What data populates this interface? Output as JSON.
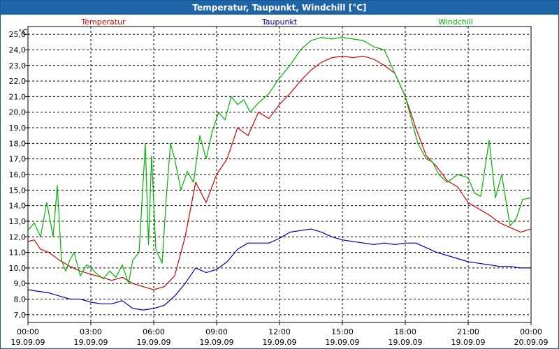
{
  "window": {
    "title": "Temperatur, Taupunkt, Windchill [°C]"
  },
  "chart_data": {
    "type": "line",
    "title": "Temperatur, Taupunkt, Windchill [°C]",
    "ylabel": "°C",
    "ylim": [
      6.5,
      25.5
    ],
    "xlim": [
      0,
      24
    ],
    "grid": true,
    "y_ticks": [
      "7,0",
      "8,0",
      "9,0",
      "10,0",
      "11,0",
      "12,0",
      "13,0",
      "14,0",
      "15,0",
      "16,0",
      "17,0",
      "18,0",
      "19,0",
      "20,0",
      "21,0",
      "22,0",
      "23,0",
      "24,0",
      "25,0"
    ],
    "x_ticks": [
      {
        "time": "00:00",
        "date": "19.09.09"
      },
      {
        "time": "03:00",
        "date": "19.09.09"
      },
      {
        "time": "06:00",
        "date": "19.09.09"
      },
      {
        "time": "09:00",
        "date": "19.09.09"
      },
      {
        "time": "12:00",
        "date": "19.09.09"
      },
      {
        "time": "15:00",
        "date": "19.09.09"
      },
      {
        "time": "18:00",
        "date": "19.09.09"
      },
      {
        "time": "21:00",
        "date": "19.09.09"
      },
      {
        "time": "00:00",
        "date": "20.09.09"
      }
    ],
    "series": [
      {
        "name": "Temperatur",
        "color": "#d40000",
        "x": [
          0,
          0.3,
          0.6,
          1,
          1.5,
          2,
          2.5,
          3,
          3.5,
          4,
          4.5,
          5,
          5.5,
          6,
          6.5,
          7,
          7.5,
          8,
          8.5,
          9,
          9.5,
          10,
          10.5,
          11,
          11.5,
          12,
          12.5,
          13,
          13.5,
          14,
          14.5,
          15,
          15.5,
          16,
          16.5,
          17,
          17.5,
          18,
          18.5,
          19,
          19.5,
          20,
          20.5,
          21,
          21.5,
          22,
          22.5,
          23,
          23.5,
          24
        ],
        "values": [
          11.7,
          11.8,
          11.2,
          11.0,
          10.5,
          10.1,
          9.8,
          9.6,
          9.4,
          9.2,
          9.4,
          9.0,
          8.8,
          8.6,
          8.8,
          9.5,
          12.0,
          15.5,
          14.2,
          16.0,
          17.0,
          19.0,
          18.5,
          20.0,
          19.6,
          20.5,
          21.2,
          22.0,
          22.7,
          23.2,
          23.5,
          23.6,
          23.5,
          23.6,
          23.4,
          23.0,
          22.5,
          21.0,
          19.0,
          17.2,
          16.5,
          15.6,
          15.2,
          14.2,
          13.8,
          13.4,
          12.9,
          12.6,
          12.3,
          12.5
        ]
      },
      {
        "name": "Taupunkt",
        "color": "#0000b4",
        "x": [
          0,
          0.5,
          1,
          1.5,
          2,
          2.5,
          3,
          3.5,
          4,
          4.5,
          5,
          5.5,
          6,
          6.5,
          7,
          7.5,
          8,
          8.5,
          9,
          9.5,
          10,
          10.5,
          11,
          11.5,
          12,
          12.5,
          13,
          13.5,
          14,
          14.5,
          15,
          15.5,
          16,
          16.5,
          17,
          17.5,
          18,
          18.5,
          19,
          19.5,
          20,
          20.5,
          21,
          21.5,
          22,
          22.5,
          23,
          23.5,
          24
        ],
        "values": [
          8.6,
          8.5,
          8.4,
          8.2,
          8.0,
          8.0,
          7.8,
          7.7,
          7.7,
          7.9,
          7.4,
          7.3,
          7.4,
          7.6,
          8.2,
          9.0,
          10.0,
          9.7,
          9.9,
          10.4,
          11.2,
          11.6,
          11.6,
          11.6,
          11.9,
          12.3,
          12.4,
          12.5,
          12.3,
          12.0,
          11.8,
          11.7,
          11.6,
          11.5,
          11.6,
          11.5,
          11.6,
          11.6,
          11.3,
          11.0,
          10.8,
          10.6,
          10.4,
          10.3,
          10.2,
          10.1,
          10.1,
          10.0,
          10.0
        ]
      },
      {
        "name": "Windchill",
        "color": "#00b400",
        "x": [
          0,
          0.3,
          0.6,
          0.9,
          1.2,
          1.4,
          1.6,
          1.8,
          2,
          2.2,
          2.5,
          2.8,
          3,
          3.3,
          3.6,
          3.9,
          4.2,
          4.5,
          4.8,
          5,
          5.3,
          5.6,
          5.75,
          5.9,
          6.1,
          6.4,
          6.6,
          6.8,
          7.0,
          7.3,
          7.6,
          7.9,
          8.2,
          8.5,
          8.8,
          9.1,
          9.4,
          9.7,
          10.0,
          10.3,
          10.6,
          11.0,
          11.5,
          12,
          12.5,
          13,
          13.5,
          14,
          14.5,
          15,
          15.5,
          16,
          16.5,
          17,
          17.5,
          18,
          18.3,
          18.6,
          19,
          19.3,
          19.6,
          20,
          20.5,
          21,
          21.3,
          21.6,
          22,
          22.3,
          22.6,
          23,
          23.3,
          23.6,
          24
        ],
        "values": [
          12.4,
          12.9,
          12.0,
          14.2,
          12.0,
          15.3,
          10.5,
          9.8,
          10.5,
          11.0,
          9.5,
          10.2,
          10.0,
          9.6,
          9.3,
          9.8,
          9.4,
          10.2,
          9.0,
          10.5,
          11.0,
          18.0,
          11.5,
          17.2,
          11.2,
          10.3,
          14.5,
          18.0,
          17.0,
          15.0,
          16.2,
          15.5,
          18.5,
          17.0,
          18.8,
          20.0,
          19.5,
          21.0,
          20.5,
          20.8,
          20.0,
          20.6,
          21.2,
          22.2,
          23.0,
          24.0,
          24.6,
          24.8,
          24.7,
          24.8,
          24.7,
          24.6,
          24.2,
          24.0,
          22.5,
          21.0,
          19.5,
          18.0,
          17.0,
          16.8,
          16.0,
          15.5,
          16.0,
          15.8,
          14.8,
          14.6,
          18.2,
          14.5,
          16.0,
          12.7,
          13.2,
          14.4,
          14.5
        ]
      }
    ]
  }
}
